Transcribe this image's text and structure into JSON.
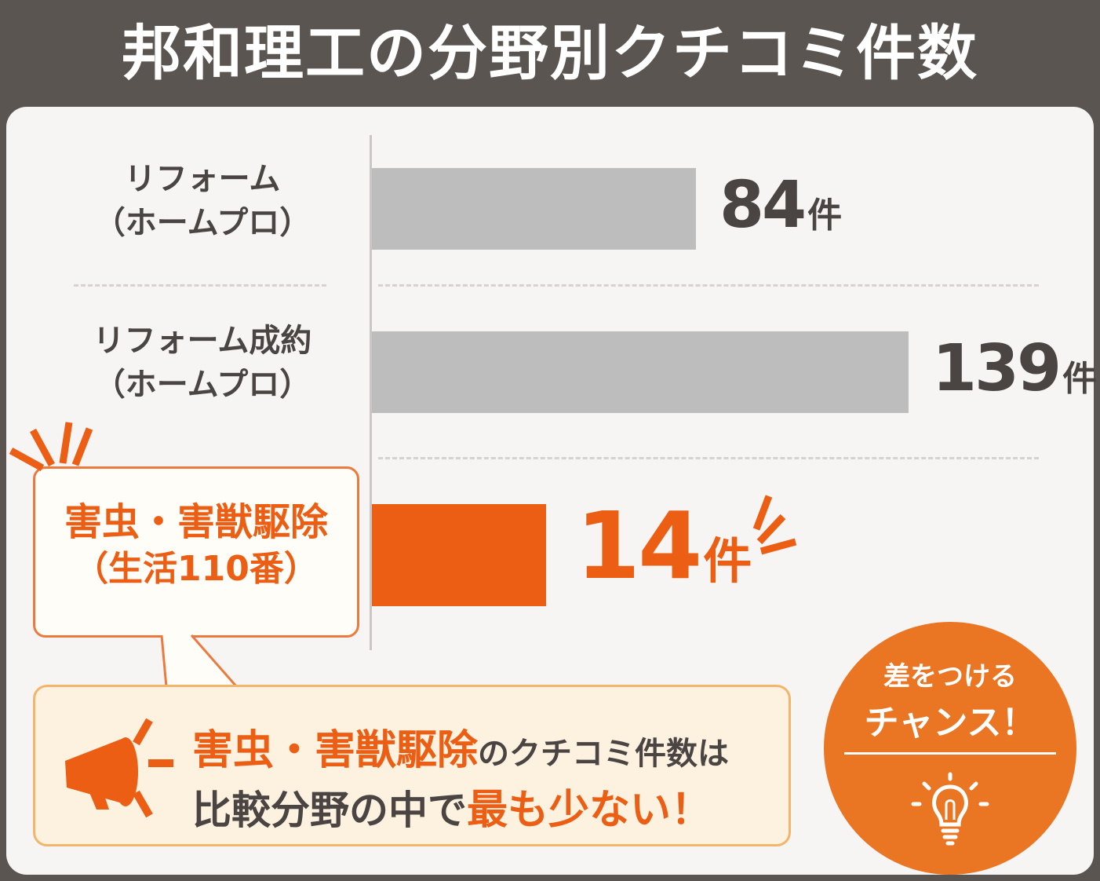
{
  "title": "邦和理工の分野別クチコミ件数",
  "chart_data": {
    "type": "bar",
    "orientation": "horizontal",
    "categories": [
      "リフォーム（ホームプロ）",
      "リフォーム成約（ホームプロ）",
      "害虫・害獣駆除（生活110番）"
    ],
    "category_lines": [
      [
        "リフォーム",
        "（ホームプロ）"
      ],
      [
        "リフォーム成約",
        "（ホームプロ）"
      ],
      [
        "害虫・害獣駆除",
        "（生活110番）"
      ]
    ],
    "values": [
      84,
      139,
      14
    ],
    "unit": "件",
    "highlight_index": 2,
    "xlim": [
      0,
      139
    ],
    "grid": false
  },
  "colors": {
    "bar_default": "#bdbdbd",
    "bar_highlight": "#ec5e14",
    "text_dark": "#4a4542",
    "accent": "#ec5e14",
    "badge": "#ea7522"
  },
  "note": {
    "line1_highlight": "害虫・害獣駆除",
    "line1_text": "のクチコミ件数は",
    "line2_text": "比較分野の中で",
    "line2_highlight": "最も少ない！"
  },
  "badge": {
    "line1": "差をつける",
    "line2": "チャンス！",
    "icon": "lightbulb-icon"
  },
  "icons": {
    "megaphone": "megaphone-icon",
    "burst": "burst-icon"
  }
}
